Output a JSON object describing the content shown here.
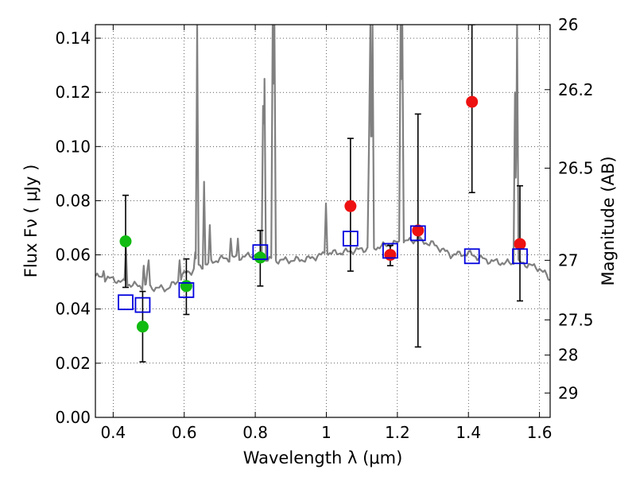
{
  "chart_data": {
    "type": "scatter",
    "title": "",
    "xlabel": "Wavelength  λ (μm)",
    "ylabel": "Flux  Fν ( μJy )",
    "y2label": "Magnitude (AB)",
    "xlim": [
      0.35,
      1.63
    ],
    "ylim": [
      0.0,
      0.145
    ],
    "grid": true,
    "legend": "none",
    "x_ticks": [
      0.4,
      0.6,
      0.8,
      1.0,
      1.2,
      1.4,
      1.6
    ],
    "x_tick_labels": [
      "0.4",
      "0.6",
      "0.8",
      "1",
      "1.2",
      "1.4",
      "1.6"
    ],
    "y_ticks": [
      0.0,
      0.02,
      0.04,
      0.06,
      0.08,
      0.1,
      0.12,
      0.14
    ],
    "y_tick_labels": [
      "0.00",
      "0.02",
      "0.04",
      "0.06",
      "0.08",
      "0.10",
      "0.12",
      "0.14"
    ],
    "y2_ticks": [
      {
        "label": "26",
        "flux": 0.145
      },
      {
        "label": "26.2",
        "flux": 0.121
      },
      {
        "label": "26.5",
        "flux": 0.092
      },
      {
        "label": "27",
        "flux": 0.058
      },
      {
        "label": "27.5",
        "flux": 0.036
      },
      {
        "label": "28",
        "flux": 0.023
      },
      {
        "label": "29",
        "flux": 0.009
      }
    ],
    "colors": {
      "green": "#11bb11",
      "red": "#ee1111",
      "blue": "#0000dd",
      "spectrum": "#808080"
    },
    "series": [
      {
        "marker": "circle",
        "color": "green",
        "points": [
          {
            "x": 0.435,
            "y": 0.065,
            "err": [
              0.048,
              0.082
            ]
          },
          {
            "x": 0.483,
            "y": 0.0335,
            "err": [
              0.0205,
              0.0465
            ]
          },
          {
            "x": 0.606,
            "y": 0.0485,
            "err": [
              0.038,
              0.0585
            ]
          },
          {
            "x": 0.814,
            "y": 0.059,
            "err": [
              0.0485,
              0.069
            ]
          }
        ]
      },
      {
        "marker": "circle",
        "color": "red",
        "points": [
          {
            "x": 1.068,
            "y": 0.078,
            "err": [
              0.054,
              0.103
            ]
          },
          {
            "x": 1.18,
            "y": 0.06,
            "err": [
              0.056,
              0.0635
            ]
          },
          {
            "x": 1.258,
            "y": 0.069,
            "err": [
              0.026,
              0.112
            ]
          },
          {
            "x": 1.41,
            "y": 0.1165,
            "err": [
              0.083,
              0.145
            ]
          },
          {
            "x": 1.545,
            "y": 0.064,
            "err": [
              0.043,
              0.0855
            ]
          }
        ]
      },
      {
        "marker": "open-square",
        "color": "blue",
        "points": [
          {
            "x": 0.435,
            "y": 0.0425
          },
          {
            "x": 0.483,
            "y": 0.0415
          },
          {
            "x": 0.606,
            "y": 0.047
          },
          {
            "x": 0.814,
            "y": 0.061
          },
          {
            "x": 1.068,
            "y": 0.066
          },
          {
            "x": 1.18,
            "y": 0.0615
          },
          {
            "x": 1.258,
            "y": 0.068
          },
          {
            "x": 1.41,
            "y": 0.0595
          },
          {
            "x": 1.545,
            "y": 0.0595
          }
        ]
      },
      {
        "type": "line",
        "color": "spectrum",
        "continuum": [
          [
            0.35,
            0.052
          ],
          [
            0.4,
            0.051
          ],
          [
            0.45,
            0.049
          ],
          [
            0.5,
            0.048
          ],
          [
            0.55,
            0.0475
          ],
          [
            0.58,
            0.05
          ],
          [
            0.6,
            0.053
          ],
          [
            0.62,
            0.054
          ],
          [
            0.65,
            0.056
          ],
          [
            0.7,
            0.0585
          ],
          [
            0.75,
            0.059
          ],
          [
            0.8,
            0.06
          ],
          [
            0.85,
            0.058
          ],
          [
            0.9,
            0.058
          ],
          [
            0.95,
            0.0585
          ],
          [
            1.0,
            0.0605
          ],
          [
            1.05,
            0.061
          ],
          [
            1.1,
            0.062
          ],
          [
            1.15,
            0.063
          ],
          [
            1.2,
            0.0645
          ],
          [
            1.25,
            0.0655
          ],
          [
            1.3,
            0.064
          ],
          [
            1.35,
            0.06
          ],
          [
            1.4,
            0.0605
          ],
          [
            1.45,
            0.058
          ],
          [
            1.5,
            0.057
          ],
          [
            1.55,
            0.057
          ],
          [
            1.6,
            0.055
          ],
          [
            1.63,
            0.051
          ]
        ],
        "emission_lines": [
          {
            "x": 0.373,
            "peak": 0.054
          },
          {
            "x": 0.436,
            "peak": 0.063
          },
          {
            "x": 0.486,
            "peak": 0.056
          },
          {
            "x": 0.496,
            "peak": 0.054
          },
          {
            "x": 0.5,
            "peak": 0.058
          },
          {
            "x": 0.587,
            "peak": 0.058
          },
          {
            "x": 0.631,
            "peak": 0.061
          },
          {
            "x": 0.6365,
            "peak": 0.145
          },
          {
            "x": 0.656,
            "peak": 0.087
          },
          {
            "x": 0.672,
            "peak": 0.071
          },
          {
            "x": 0.731,
            "peak": 0.066
          },
          {
            "x": 0.751,
            "peak": 0.066
          },
          {
            "x": 0.822,
            "peak": 0.115
          },
          {
            "x": 0.826,
            "peak": 0.125
          },
          {
            "x": 0.849,
            "peak": 0.145
          },
          {
            "x": 0.854,
            "peak": 0.145
          },
          {
            "x": 0.999,
            "peak": 0.079
          },
          {
            "x": 1.12,
            "peak": 0.1
          },
          {
            "x": 1.124,
            "peak": 0.145
          },
          {
            "x": 1.13,
            "peak": 0.145
          },
          {
            "x": 1.209,
            "peak": 0.145
          },
          {
            "x": 1.214,
            "peak": 0.145
          },
          {
            "x": 1.259,
            "peak": 0.07
          },
          {
            "x": 1.531,
            "peak": 0.12
          },
          {
            "x": 1.537,
            "peak": 0.145
          }
        ]
      }
    ]
  }
}
